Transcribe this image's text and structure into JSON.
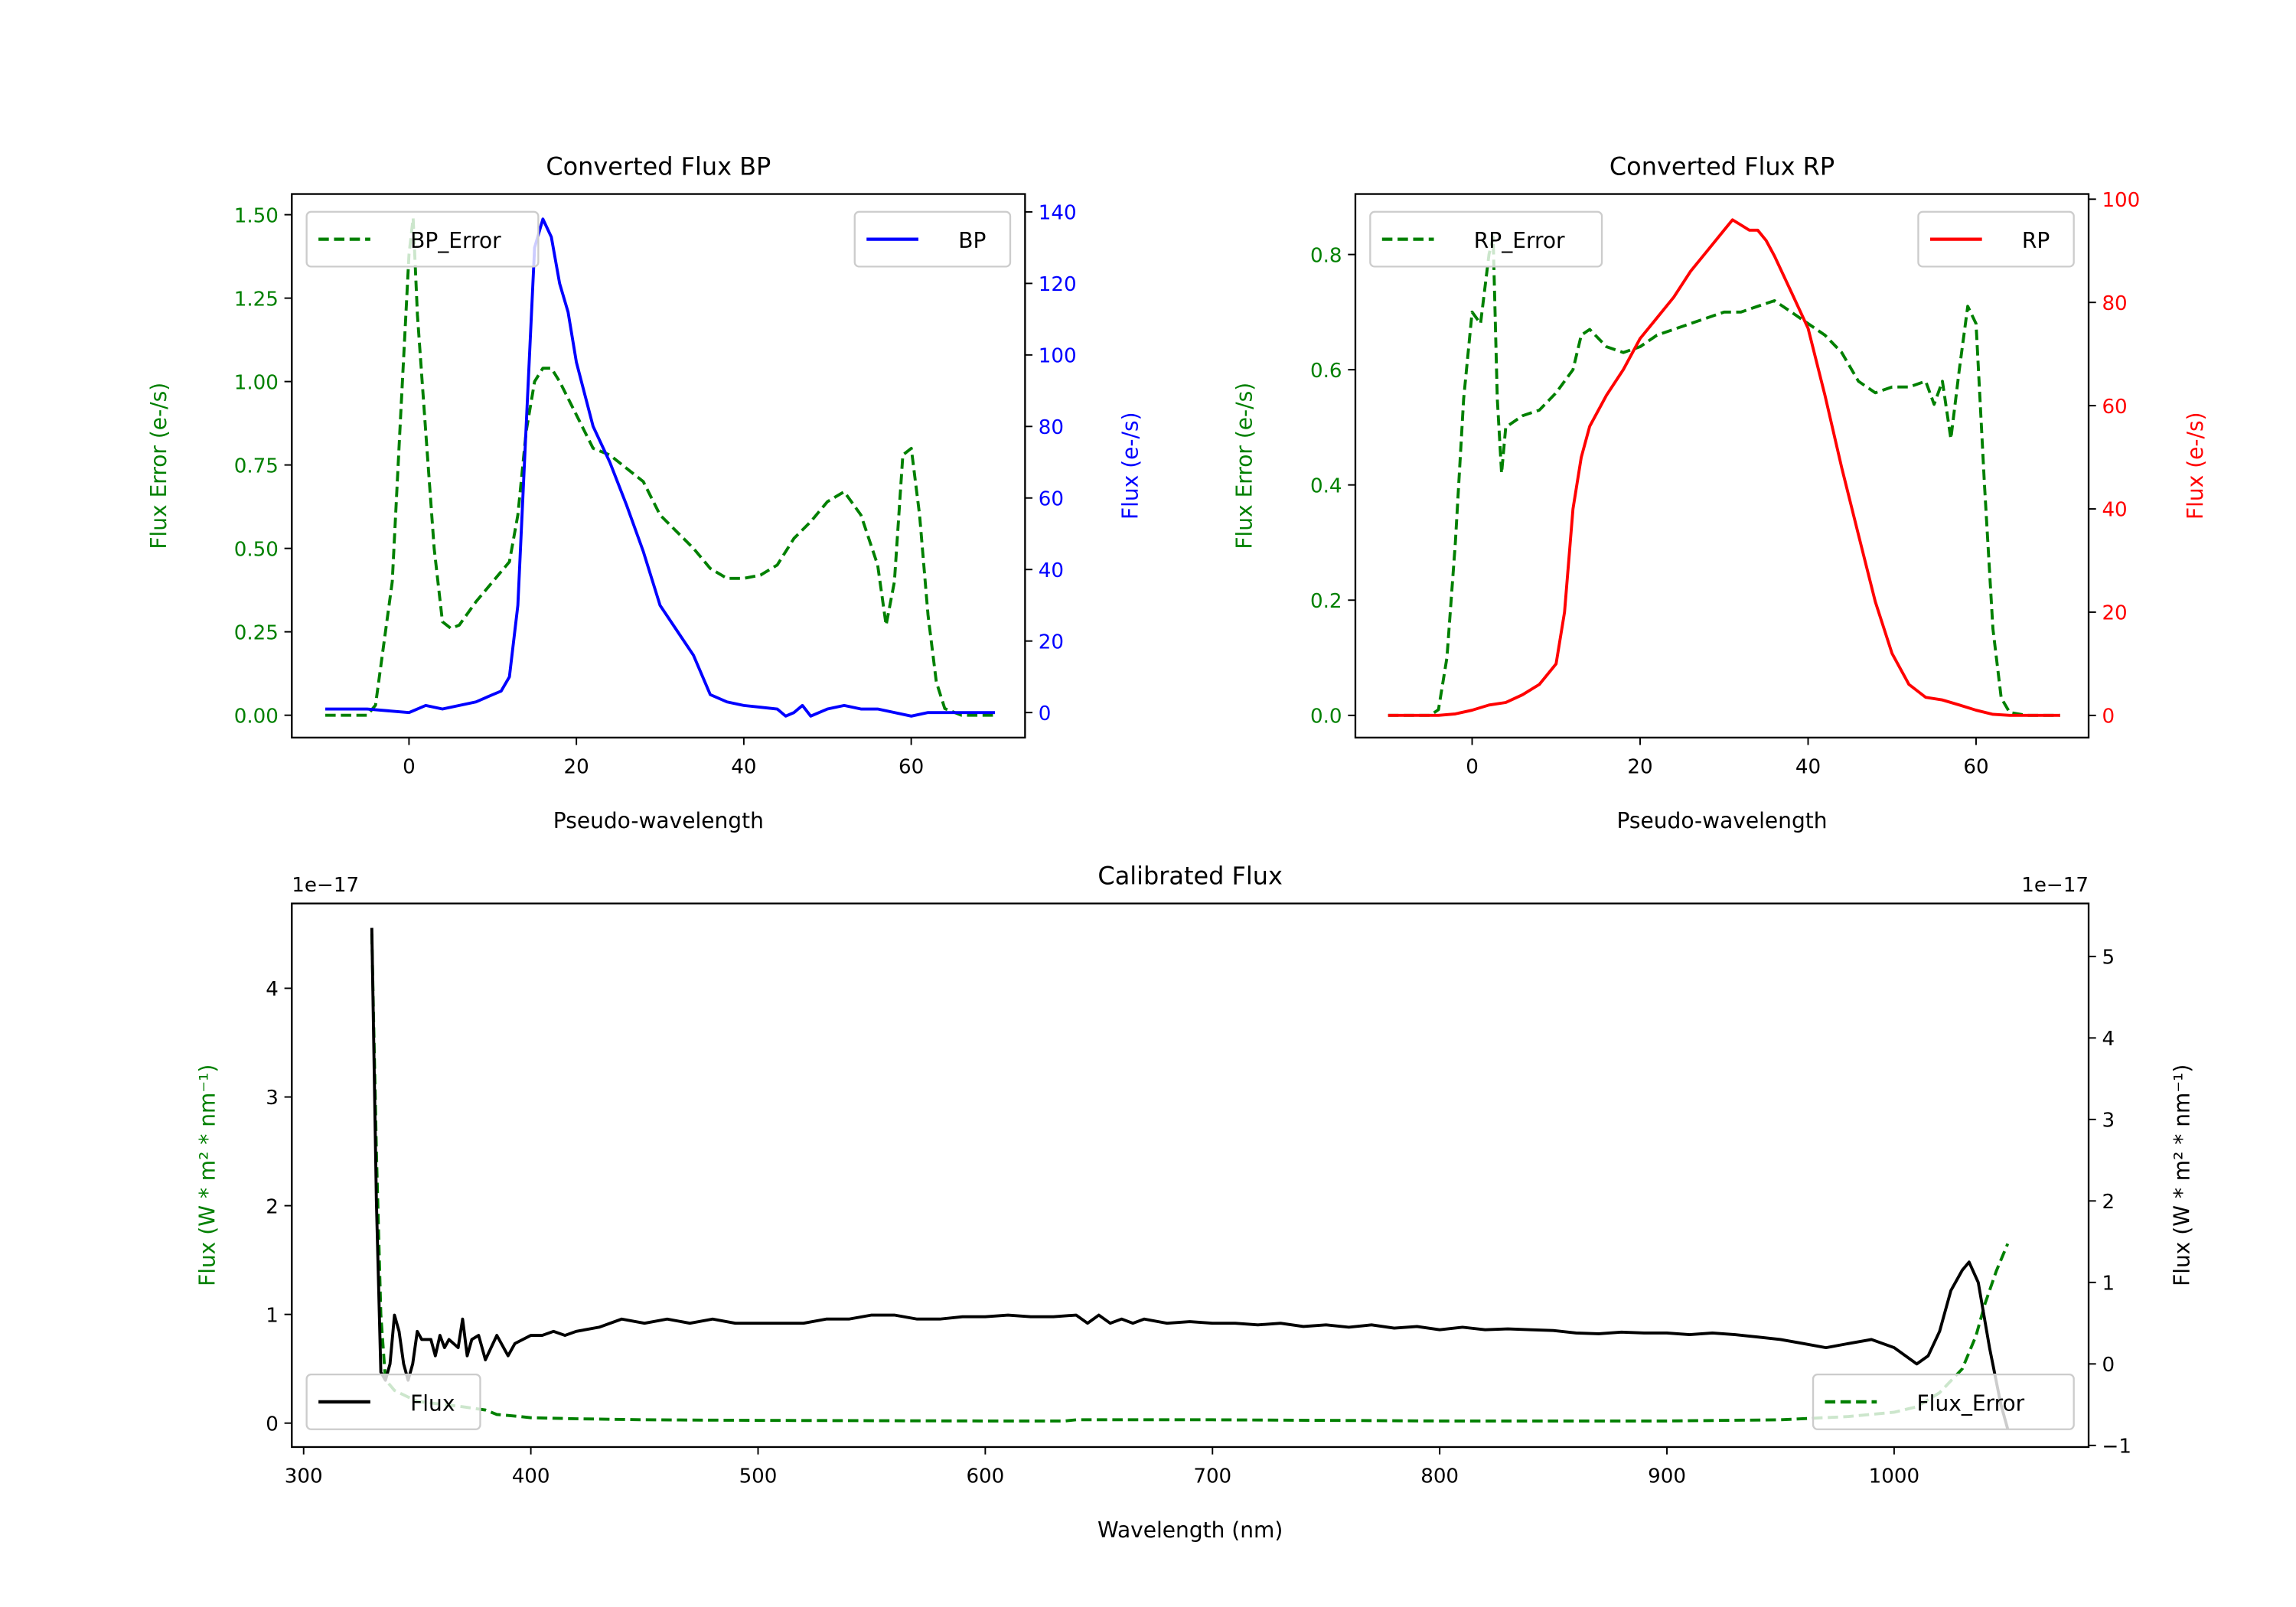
{
  "chart_data": [
    {
      "type": "line",
      "title": "Converted Flux BP",
      "xlabel": "Pseudo-wavelength",
      "ylabel_left": "Flux Error (e-/s)",
      "ylabel_right": "Flux (e-/s)",
      "left_color": "#008000",
      "right_color": "#0000ff",
      "xlim": [
        -14,
        73.6
      ],
      "ylim_left": [
        -0.067,
        1.562
      ],
      "ylim_right": [
        -7,
        145
      ],
      "xticks": [
        0,
        20,
        40,
        60
      ],
      "xtick_labels": [
        "0",
        "20",
        "40",
        "60"
      ],
      "yticks_left": [
        0,
        0.25,
        0.5,
        0.75,
        1.0,
        1.25,
        1.5
      ],
      "ytick_labels_left": [
        "0.00",
        "0.25",
        "0.50",
        "0.75",
        "1.00",
        "1.25",
        "1.50"
      ],
      "yticks_right": [
        0,
        20,
        40,
        60,
        80,
        100,
        120,
        140
      ],
      "ytick_labels_right": [
        "0",
        "20",
        "40",
        "60",
        "80",
        "100",
        "120",
        "140"
      ],
      "legends": [
        {
          "label": "BP_Error",
          "position": "upper left",
          "series": 0
        },
        {
          "label": "BP",
          "position": "upper right",
          "series": 1
        }
      ],
      "series": [
        {
          "name": "BP_Error",
          "axis": "left",
          "color": "#008000",
          "style": "dashed",
          "x": [
            -10,
            -5,
            -4,
            -2,
            -1,
            0,
            0.5,
            1,
            2,
            3,
            4,
            5,
            6,
            8,
            10,
            12,
            13,
            14,
            15,
            16,
            17,
            18,
            20,
            22,
            24,
            26,
            28,
            30,
            32,
            34,
            36,
            38,
            40,
            42,
            44,
            46,
            48,
            50,
            52,
            54,
            56,
            57,
            58,
            59,
            60,
            61,
            62,
            63,
            64,
            66,
            70
          ],
          "y": [
            0,
            0,
            0.03,
            0.4,
            0.9,
            1.38,
            1.49,
            1.2,
            0.85,
            0.5,
            0.28,
            0.26,
            0.27,
            0.34,
            0.4,
            0.46,
            0.6,
            0.85,
            1.0,
            1.04,
            1.04,
            1.0,
            0.9,
            0.8,
            0.78,
            0.74,
            0.7,
            0.6,
            0.55,
            0.5,
            0.44,
            0.41,
            0.41,
            0.42,
            0.45,
            0.53,
            0.58,
            0.64,
            0.67,
            0.6,
            0.45,
            0.27,
            0.4,
            0.78,
            0.8,
            0.6,
            0.3,
            0.1,
            0.02,
            0,
            0
          ]
        },
        {
          "name": "BP",
          "axis": "right",
          "color": "#0000ff",
          "style": "solid",
          "x": [
            -10,
            -5,
            0,
            2,
            4,
            6,
            8,
            10,
            11,
            12,
            13,
            14,
            15,
            16,
            17,
            18,
            19,
            20,
            22,
            24,
            26,
            28,
            30,
            32,
            34,
            36,
            38,
            40,
            42,
            44,
            45,
            46,
            47,
            48,
            50,
            52,
            54,
            56,
            58,
            60,
            62,
            65,
            70
          ],
          "y": [
            1,
            1,
            0,
            2,
            1,
            2,
            3,
            5,
            6,
            10,
            30,
            80,
            130,
            138,
            133,
            120,
            112,
            98,
            80,
            70,
            58,
            45,
            30,
            23,
            16,
            5,
            3,
            2,
            1.5,
            1,
            -1,
            0,
            2,
            -1,
            1,
            2,
            1,
            1,
            0,
            -1,
            0,
            0,
            0
          ]
        }
      ]
    },
    {
      "type": "line",
      "title": "Converted Flux RP",
      "xlabel": "Pseudo-wavelength",
      "ylabel_left": "Flux Error (e-/s)",
      "ylabel_right": "Flux (e-/s)",
      "left_color": "#008000",
      "right_color": "#ff0000",
      "xlim": [
        -13.9,
        73.4
      ],
      "ylim_left": [
        -0.0386,
        0.905
      ],
      "ylim_right": [
        -4.3,
        101
      ],
      "xticks": [
        0,
        20,
        40,
        60
      ],
      "xtick_labels": [
        "0",
        "20",
        "40",
        "60"
      ],
      "yticks_left": [
        0,
        0.2,
        0.4,
        0.6,
        0.8
      ],
      "ytick_labels_left": [
        "0.0",
        "0.2",
        "0.4",
        "0.6",
        "0.8"
      ],
      "yticks_right": [
        0,
        20,
        40,
        60,
        80,
        100
      ],
      "ytick_labels_right": [
        "0",
        "20",
        "40",
        "60",
        "80",
        "100"
      ],
      "legends": [
        {
          "label": "RP_Error",
          "position": "upper left",
          "series": 0
        },
        {
          "label": "RP",
          "position": "upper right",
          "series": 1
        }
      ],
      "series": [
        {
          "name": "RP_Error",
          "axis": "left",
          "color": "#008000",
          "style": "dashed",
          "x": [
            -10,
            -5,
            -4,
            -3,
            -2,
            -1,
            0,
            1,
            2,
            2.5,
            3,
            3.5,
            4,
            6,
            8,
            10,
            12,
            13,
            14,
            16,
            18,
            20,
            22,
            24,
            26,
            28,
            30,
            32,
            34,
            36,
            38,
            40,
            42,
            44,
            46,
            48,
            50,
            52,
            54,
            55,
            56,
            57,
            58,
            59,
            60,
            61,
            62,
            63,
            64,
            66,
            70
          ],
          "y": [
            0,
            0,
            0.01,
            0.1,
            0.3,
            0.55,
            0.7,
            0.68,
            0.8,
            0.83,
            0.55,
            0.42,
            0.5,
            0.52,
            0.53,
            0.56,
            0.6,
            0.66,
            0.67,
            0.64,
            0.63,
            0.64,
            0.66,
            0.67,
            0.68,
            0.69,
            0.7,
            0.7,
            0.71,
            0.72,
            0.7,
            0.68,
            0.66,
            0.63,
            0.58,
            0.56,
            0.57,
            0.57,
            0.58,
            0.54,
            0.58,
            0.48,
            0.6,
            0.71,
            0.68,
            0.4,
            0.15,
            0.03,
            0.005,
            0,
            0
          ]
        },
        {
          "name": "RP",
          "axis": "right",
          "color": "#ff0000",
          "style": "solid",
          "x": [
            -10,
            -4,
            -2,
            0,
            2,
            4,
            6,
            8,
            10,
            11,
            12,
            13,
            14,
            16,
            18,
            20,
            22,
            24,
            26,
            28,
            30,
            31,
            32,
            33,
            34,
            35,
            36,
            38,
            40,
            42,
            44,
            46,
            48,
            50,
            52,
            54,
            56,
            58,
            60,
            62,
            64,
            70
          ],
          "y": [
            0,
            0,
            0.3,
            1,
            2,
            2.5,
            4,
            6,
            10,
            20,
            40,
            50,
            56,
            62,
            67,
            73,
            77,
            81,
            86,
            90,
            94,
            96,
            95,
            94,
            94,
            92,
            89,
            82,
            75,
            62,
            48,
            35,
            22,
            12,
            6,
            3.5,
            3,
            2,
            1,
            0.2,
            0,
            0
          ]
        }
      ]
    },
    {
      "type": "line",
      "title": "Calibrated Flux",
      "xlabel": "Wavelength (nm)",
      "ylabel_left": "Flux (W * m² * nm⁻¹)",
      "ylabel_right": "Flux (W * m² * nm⁻¹)",
      "offset_left": "1e−17",
      "offset_right": "1e−17",
      "left_color": "#008000",
      "right_color": "#000000",
      "xlim": [
        294.8,
        1085.6
      ],
      "ylim_left": [
        -0.22,
        4.78
      ],
      "ylim_right": [
        -1.02,
        5.65
      ],
      "xticks": [
        300,
        400,
        500,
        600,
        700,
        800,
        900,
        1000
      ],
      "xtick_labels": [
        "300",
        "400",
        "500",
        "600",
        "700",
        "800",
        "900",
        "1000"
      ],
      "yticks_left": [
        0,
        1,
        2,
        3,
        4
      ],
      "ytick_labels_left": [
        "0",
        "1",
        "2",
        "3",
        "4"
      ],
      "yticks_right": [
        -1,
        0,
        1,
        2,
        3,
        4,
        5
      ],
      "ytick_labels_right": [
        "−1",
        "0",
        "1",
        "2",
        "3",
        "4",
        "5"
      ],
      "legends": [
        {
          "label": "Flux",
          "position": "lower left",
          "series": 1
        },
        {
          "label": "Flux_Error",
          "position": "lower right",
          "series": 0
        }
      ],
      "series": [
        {
          "name": "Flux_Error",
          "axis": "left",
          "color": "#008000",
          "style": "dashed",
          "x": [
            330,
            332,
            334,
            336,
            340,
            350,
            370,
            380,
            385,
            395,
            400,
            420,
            450,
            500,
            600,
            635,
            640,
            700,
            800,
            900,
            950,
            980,
            1000,
            1010,
            1020,
            1030,
            1036,
            1040,
            1045,
            1050
          ],
          "y": [
            4.5,
            2.5,
            1.0,
            0.4,
            0.3,
            0.2,
            0.15,
            0.12,
            0.08,
            0.06,
            0.05,
            0.04,
            0.03,
            0.025,
            0.02,
            0.02,
            0.03,
            0.03,
            0.02,
            0.02,
            0.03,
            0.06,
            0.1,
            0.15,
            0.28,
            0.5,
            0.8,
            1.1,
            1.4,
            1.65
          ]
        },
        {
          "name": "Flux",
          "axis": "right",
          "color": "#000000",
          "style": "solid",
          "x": [
            330,
            332,
            334,
            336,
            338,
            340,
            342,
            344,
            346,
            348,
            350,
            352,
            356,
            358,
            360,
            362,
            364,
            368,
            370,
            372,
            374,
            377,
            380,
            385,
            390,
            393,
            400,
            405,
            410,
            415,
            420,
            430,
            440,
            450,
            460,
            470,
            480,
            490,
            500,
            510,
            520,
            530,
            540,
            550,
            560,
            570,
            580,
            590,
            600,
            610,
            620,
            630,
            640,
            645,
            650,
            655,
            660,
            665,
            670,
            680,
            690,
            700,
            710,
            720,
            730,
            740,
            750,
            760,
            770,
            780,
            790,
            800,
            810,
            820,
            830,
            840,
            850,
            860,
            870,
            880,
            890,
            900,
            910,
            920,
            930,
            940,
            950,
            960,
            970,
            980,
            990,
            1000,
            1010,
            1015,
            1020,
            1025,
            1030,
            1033,
            1037,
            1042,
            1047,
            1050
          ],
          "y": [
            5.35,
            2.0,
            -0.1,
            -0.2,
            0.0,
            0.6,
            0.4,
            0.0,
            -0.2,
            0.0,
            0.4,
            0.3,
            0.3,
            0.1,
            0.35,
            0.2,
            0.3,
            0.2,
            0.55,
            0.1,
            0.3,
            0.35,
            0.05,
            0.35,
            0.1,
            0.25,
            0.35,
            0.35,
            0.4,
            0.35,
            0.4,
            0.45,
            0.55,
            0.5,
            0.55,
            0.5,
            0.55,
            0.5,
            0.5,
            0.5,
            0.5,
            0.55,
            0.55,
            0.6,
            0.6,
            0.55,
            0.55,
            0.58,
            0.58,
            0.6,
            0.58,
            0.58,
            0.6,
            0.5,
            0.6,
            0.5,
            0.55,
            0.5,
            0.55,
            0.5,
            0.52,
            0.5,
            0.5,
            0.48,
            0.5,
            0.46,
            0.48,
            0.45,
            0.48,
            0.44,
            0.46,
            0.42,
            0.45,
            0.42,
            0.43,
            0.42,
            0.41,
            0.38,
            0.37,
            0.39,
            0.38,
            0.38,
            0.36,
            0.38,
            0.36,
            0.33,
            0.3,
            0.25,
            0.2,
            0.25,
            0.3,
            0.2,
            0.0,
            0.1,
            0.4,
            0.9,
            1.15,
            1.25,
            1.0,
            0.2,
            -0.5,
            -0.8
          ]
        }
      ]
    }
  ]
}
